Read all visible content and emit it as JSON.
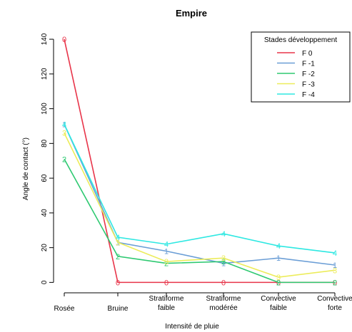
{
  "chart_data": {
    "type": "line",
    "title": "Empire",
    "xlabel": "Intensité de pluie",
    "ylabel": "Angle de contact (°)",
    "categories": [
      [
        "Rosée"
      ],
      [
        "Bruine"
      ],
      [
        "Stratiforme",
        "faible"
      ],
      [
        "Stratiforme",
        "modérée"
      ],
      [
        "Convective",
        "faible"
      ],
      [
        "Convective",
        "forte"
      ]
    ],
    "y_ticks": [
      "0",
      "20",
      "40",
      "60",
      "80",
      "100",
      "120",
      "140"
    ],
    "ylim": [
      -6,
      147
    ],
    "legend": {
      "title": "Stades développement",
      "position": "top-right"
    },
    "series": [
      {
        "name": "F 0",
        "marker": "0",
        "color": "#e8354a",
        "values": [
          140,
          0,
          0,
          0,
          0,
          0
        ]
      },
      {
        "name": "F -1",
        "marker": "1",
        "color": "#6b9ed6",
        "values": [
          91,
          23,
          18,
          11,
          14,
          10
        ]
      },
      {
        "name": "F -2",
        "marker": "2",
        "color": "#2ec971",
        "values": [
          71,
          15,
          11,
          12,
          0,
          0
        ]
      },
      {
        "name": "F -3",
        "marker": "3",
        "color": "#ecec5a",
        "values": [
          86,
          23,
          12,
          14,
          3,
          7
        ]
      },
      {
        "name": "F -4",
        "marker": "4",
        "color": "#2ee8e2",
        "values": [
          91,
          26,
          22,
          28,
          21,
          17
        ]
      }
    ]
  }
}
